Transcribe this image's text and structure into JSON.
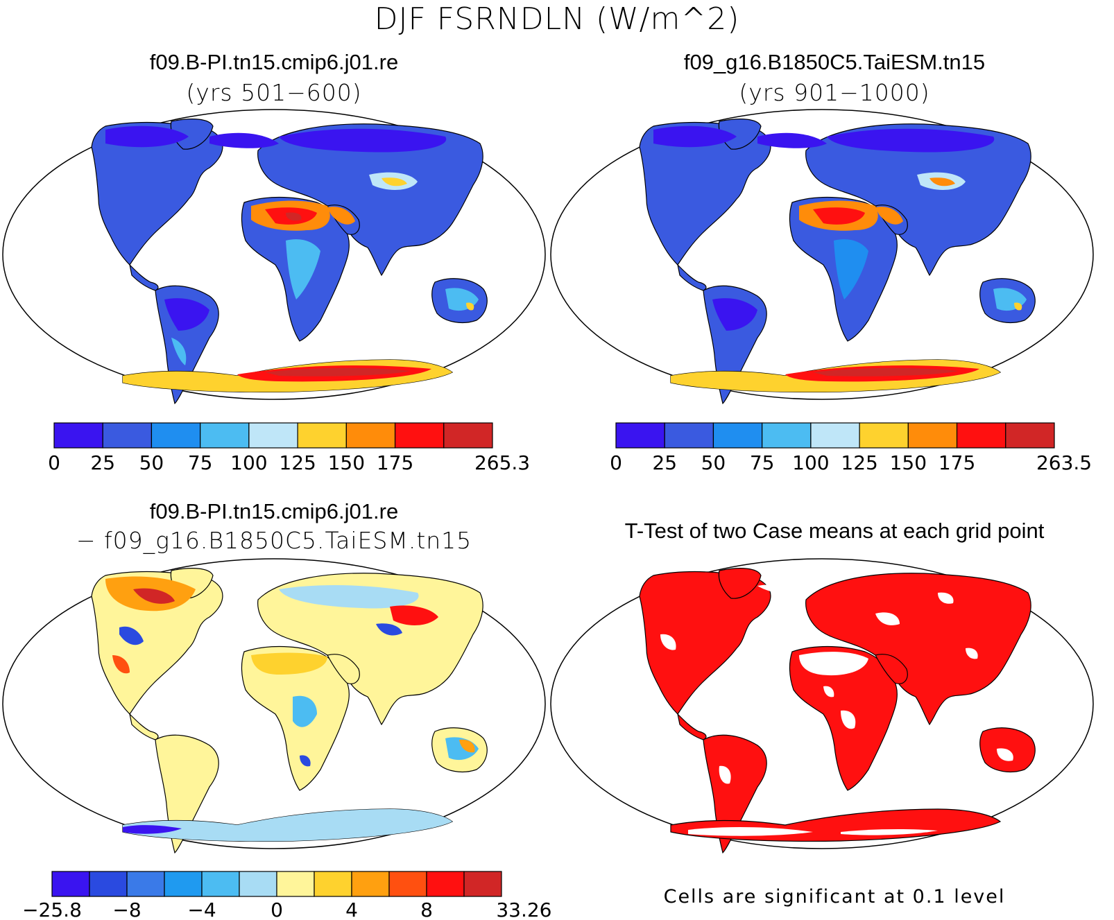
{
  "title": "DJF FSRNDLN (W/m^2)",
  "panels": [
    {
      "id": "case1",
      "title": "f09.B-PI.tn15.cmip6.j01.re",
      "subtitle": "(yrs 501−600)",
      "colorbar": {
        "colors": [
          "#3a14f0",
          "#3a5ae0",
          "#1f8ef0",
          "#4cbcf2",
          "#bfe6f8",
          "#fed22e",
          "#ff8c0a",
          "#ff1010",
          "#d12626"
        ],
        "labels": [
          "0",
          "25",
          "50",
          "75",
          "100",
          "125",
          "150",
          "175",
          "265.3"
        ]
      }
    },
    {
      "id": "case2",
      "title": "f09_g16.B1850C5.TaiESM.tn15",
      "subtitle": "(yrs 901−1000)",
      "colorbar": {
        "colors": [
          "#3a14f0",
          "#3a5ae0",
          "#1f8ef0",
          "#4cbcf2",
          "#bfe6f8",
          "#fed22e",
          "#ff8c0a",
          "#ff1010",
          "#d12626"
        ],
        "labels": [
          "0",
          "25",
          "50",
          "75",
          "100",
          "125",
          "150",
          "175",
          "263.5"
        ]
      }
    },
    {
      "id": "diff",
      "title": "f09.B-PI.tn15.cmip6.j01.re",
      "subtitle": "− f09_g16.B1850C5.TaiESM.tn15",
      "colorbar": {
        "colors": [
          "#3a14f0",
          "#2a4ae0",
          "#3a7ae8",
          "#1f9af0",
          "#4cbcf2",
          "#a8dcf4",
          "#fff59a",
          "#fed22e",
          "#ffa010",
          "#ff5010",
          "#ff1010",
          "#d12626"
        ],
        "labels": [
          "−25.8",
          "−8",
          "−4",
          "0",
          "4",
          "8",
          "33.26"
        ]
      }
    },
    {
      "id": "ttest",
      "title": "T-Test of two Case means at each grid point",
      "footnote": "Cells are significant at 0.1 level"
    }
  ]
}
